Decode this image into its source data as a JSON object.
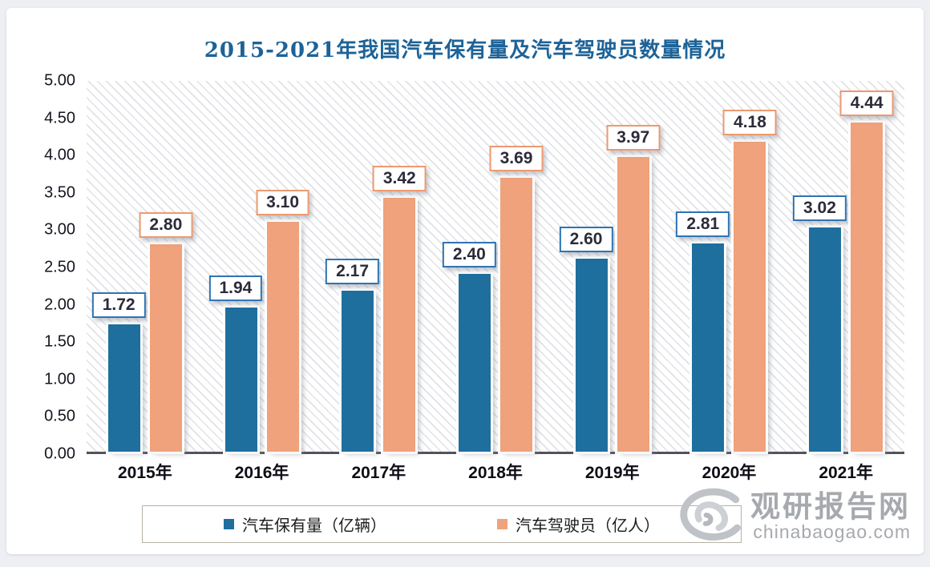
{
  "title": "2015-2021年我国汽车保有量及汽车驾驶员数量情况",
  "chart_data": {
    "type": "bar",
    "title": "2015-2021年我国汽车保有量及汽车驾驶员数量情况",
    "categories": [
      "2015年",
      "2016年",
      "2017年",
      "2018年",
      "2019年",
      "2020年",
      "2021年"
    ],
    "series": [
      {
        "name": "汽车保有量（亿辆）",
        "color": "#1f6f9e",
        "label_border_color": "#2e74b5",
        "values": [
          1.72,
          1.94,
          2.17,
          2.4,
          2.6,
          2.81,
          3.02
        ]
      },
      {
        "name": "汽车驾驶员（亿人）",
        "color": "#efa27b",
        "label_border_color": "#ec9a70",
        "values": [
          2.8,
          3.1,
          3.42,
          3.69,
          3.97,
          4.18,
          4.44
        ]
      }
    ],
    "ylim": [
      0,
      5
    ],
    "ytick_step": 0.5,
    "yticks": [
      "5.00",
      "4.50",
      "4.00",
      "3.50",
      "3.00",
      "2.50",
      "2.00",
      "1.50",
      "1.00",
      "0.50",
      "0.00"
    ],
    "value_label_decimals": 2,
    "grid": false,
    "plot_background": "diagonal-hatch",
    "legend_position": "bottom",
    "title_color": "#1d6398"
  },
  "watermark": {
    "brand": "观研报告网",
    "domain": "chinabaogao.com"
  }
}
